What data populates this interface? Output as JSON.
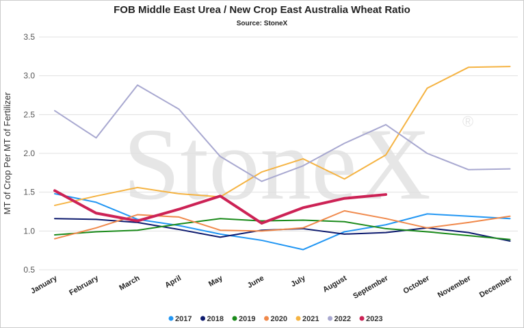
{
  "chart_data": {
    "type": "line",
    "title": "FOB Middle East Urea / New Crop East Australia Wheat Ratio",
    "subtitle": "Source: StoneX",
    "watermark": "StoneX",
    "watermark_symbol": "®",
    "y_label": "MT of Crop Per MT of Fertilizer",
    "categories": [
      "January",
      "February",
      "March",
      "April",
      "May",
      "June",
      "July",
      "August",
      "September",
      "October",
      "November",
      "December"
    ],
    "ylim": [
      0.5,
      3.5
    ],
    "yticks": [
      0.5,
      {
        "value": 1.0,
        "label": "1.0"
      },
      1.5,
      {
        "value": 2.0,
        "label": "2.0"
      },
      2.5,
      {
        "value": 3.0,
        "label": "3.0"
      },
      3.5
    ],
    "grid": true,
    "legend": "bottom",
    "series": [
      {
        "name": "2017",
        "color": "#2196f3",
        "values": [
          1.48,
          1.37,
          1.15,
          1.07,
          0.96,
          0.88,
          0.76,
          0.99,
          1.08,
          1.22,
          1.19,
          1.16
        ]
      },
      {
        "name": "2018",
        "color": "#0d1a6e",
        "values": [
          1.16,
          1.15,
          1.11,
          1.02,
          0.92,
          1.01,
          1.03,
          0.96,
          0.98,
          1.04,
          0.98,
          0.87
        ]
      },
      {
        "name": "2019",
        "color": "#1a8a1a",
        "values": [
          0.95,
          0.99,
          1.01,
          1.09,
          1.16,
          1.13,
          1.14,
          1.12,
          1.03,
          0.99,
          0.94,
          0.89
        ]
      },
      {
        "name": "2020",
        "color": "#f0884a",
        "values": [
          0.9,
          1.04,
          1.21,
          1.18,
          1.01,
          1.0,
          1.04,
          1.26,
          1.16,
          1.04,
          1.11,
          1.19
        ]
      },
      {
        "name": "2021",
        "color": "#f5b342",
        "values": [
          1.33,
          1.45,
          1.56,
          1.48,
          1.44,
          1.76,
          1.93,
          1.67,
          1.98,
          2.84,
          3.11,
          3.12
        ]
      },
      {
        "name": "2022",
        "color": "#a8a8d0",
        "values": [
          2.55,
          2.2,
          2.88,
          2.57,
          1.96,
          1.64,
          1.84,
          2.13,
          2.37,
          2.0,
          1.79,
          1.8
        ]
      },
      {
        "name": "2023",
        "color": "#cc2255",
        "values": [
          1.52,
          1.23,
          1.13,
          1.28,
          1.45,
          1.1,
          1.3,
          1.42,
          1.47,
          null,
          null,
          null
        ]
      }
    ]
  }
}
